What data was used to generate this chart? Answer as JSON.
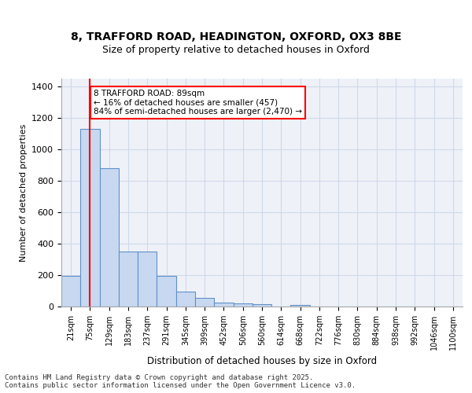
{
  "title_line1": "8, TRAFFORD ROAD, HEADINGTON, OXFORD, OX3 8BE",
  "title_line2": "Size of property relative to detached houses in Oxford",
  "xlabel": "Distribution of detached houses by size in Oxford",
  "ylabel": "Number of detached properties",
  "categories": [
    "21sqm",
    "75sqm",
    "129sqm",
    "183sqm",
    "237sqm",
    "291sqm",
    "345sqm",
    "399sqm",
    "452sqm",
    "506sqm",
    "560sqm",
    "614sqm",
    "668sqm",
    "722sqm",
    "776sqm",
    "830sqm",
    "884sqm",
    "938sqm",
    "992sqm",
    "1046sqm",
    "1100sqm"
  ],
  "values": [
    195,
    1130,
    880,
    350,
    350,
    195,
    95,
    55,
    25,
    20,
    15,
    0,
    10,
    0,
    0,
    0,
    0,
    0,
    0,
    0,
    0
  ],
  "bar_color": "#c8d8f0",
  "bar_edge_color": "#6090c8",
  "grid_color": "#d0d8e8",
  "background_color": "#eef2f8",
  "red_line_x": 1,
  "annotation_text": "8 TRAFFORD ROAD: 89sqm\n← 16% of detached houses are smaller (457)\n84% of semi-detached houses are larger (2,470) →",
  "annotation_box_color": "white",
  "annotation_box_edge": "red",
  "ylim": [
    0,
    1450
  ],
  "yticks": [
    0,
    200,
    400,
    600,
    800,
    1000,
    1200,
    1400
  ],
  "footer_line1": "Contains HM Land Registry data © Crown copyright and database right 2025.",
  "footer_line2": "Contains public sector information licensed under the Open Government Licence v3.0."
}
